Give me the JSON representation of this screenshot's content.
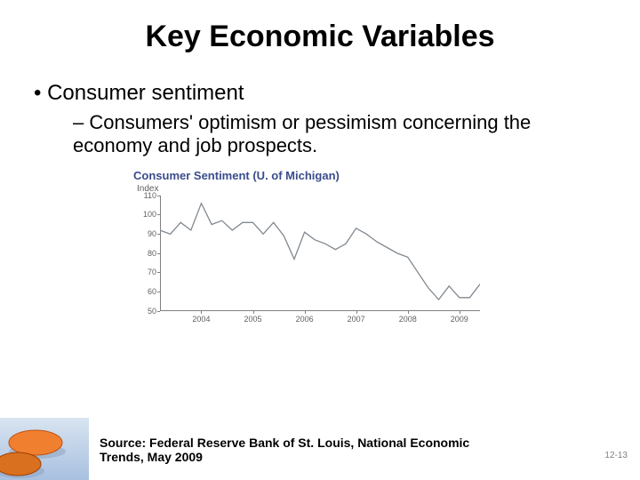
{
  "slide": {
    "title": "Key Economic Variables",
    "bullet1": "Consumer sentiment",
    "bullet2": "Consumers' optimism or pessimism concerning the economy and job prospects.",
    "source": "Source: Federal Reserve Bank of St. Louis, National Economic Trends, May 2009",
    "slide_number": "12-13"
  },
  "chart": {
    "type": "line",
    "title": "Consumer Sentiment (U. of Michigan)",
    "subtitle": "Index",
    "title_color": "#3a4c8c",
    "line_color": "#808890",
    "line_width": 1.3,
    "axis_color": "#808080",
    "background_color": "#ffffff",
    "ylim": [
      50,
      110
    ],
    "ytick_step": 10,
    "yticks": [
      50,
      60,
      70,
      80,
      90,
      100,
      110
    ],
    "xticks": [
      2004,
      2005,
      2006,
      2007,
      2008,
      2009
    ],
    "xlim": [
      2003.2,
      2009.4
    ],
    "series": {
      "x": [
        2003.2,
        2003.4,
        2003.6,
        2003.8,
        2004.0,
        2004.2,
        2004.4,
        2004.6,
        2004.8,
        2005.0,
        2005.2,
        2005.4,
        2005.6,
        2005.8,
        2006.0,
        2006.2,
        2006.4,
        2006.6,
        2006.8,
        2007.0,
        2007.2,
        2007.4,
        2007.6,
        2007.8,
        2008.0,
        2008.2,
        2008.4,
        2008.6,
        2008.8,
        2009.0,
        2009.2,
        2009.4
      ],
      "y": [
        92,
        90,
        96,
        92,
        106,
        95,
        97,
        92,
        96,
        96,
        90,
        96,
        89,
        77,
        91,
        87,
        85,
        82,
        85,
        93,
        90,
        86,
        83,
        80,
        78,
        70,
        62,
        56,
        63,
        57,
        57,
        64
      ]
    }
  },
  "pebble": {
    "top_color": "#f08030",
    "top_stroke": "#c05010",
    "bottom_color": "#d87020",
    "bottom_stroke": "#a04000",
    "shadow": "#8aa0c0",
    "bg_top": "#d8e4f0",
    "bg_bottom": "#a8c0e0"
  }
}
